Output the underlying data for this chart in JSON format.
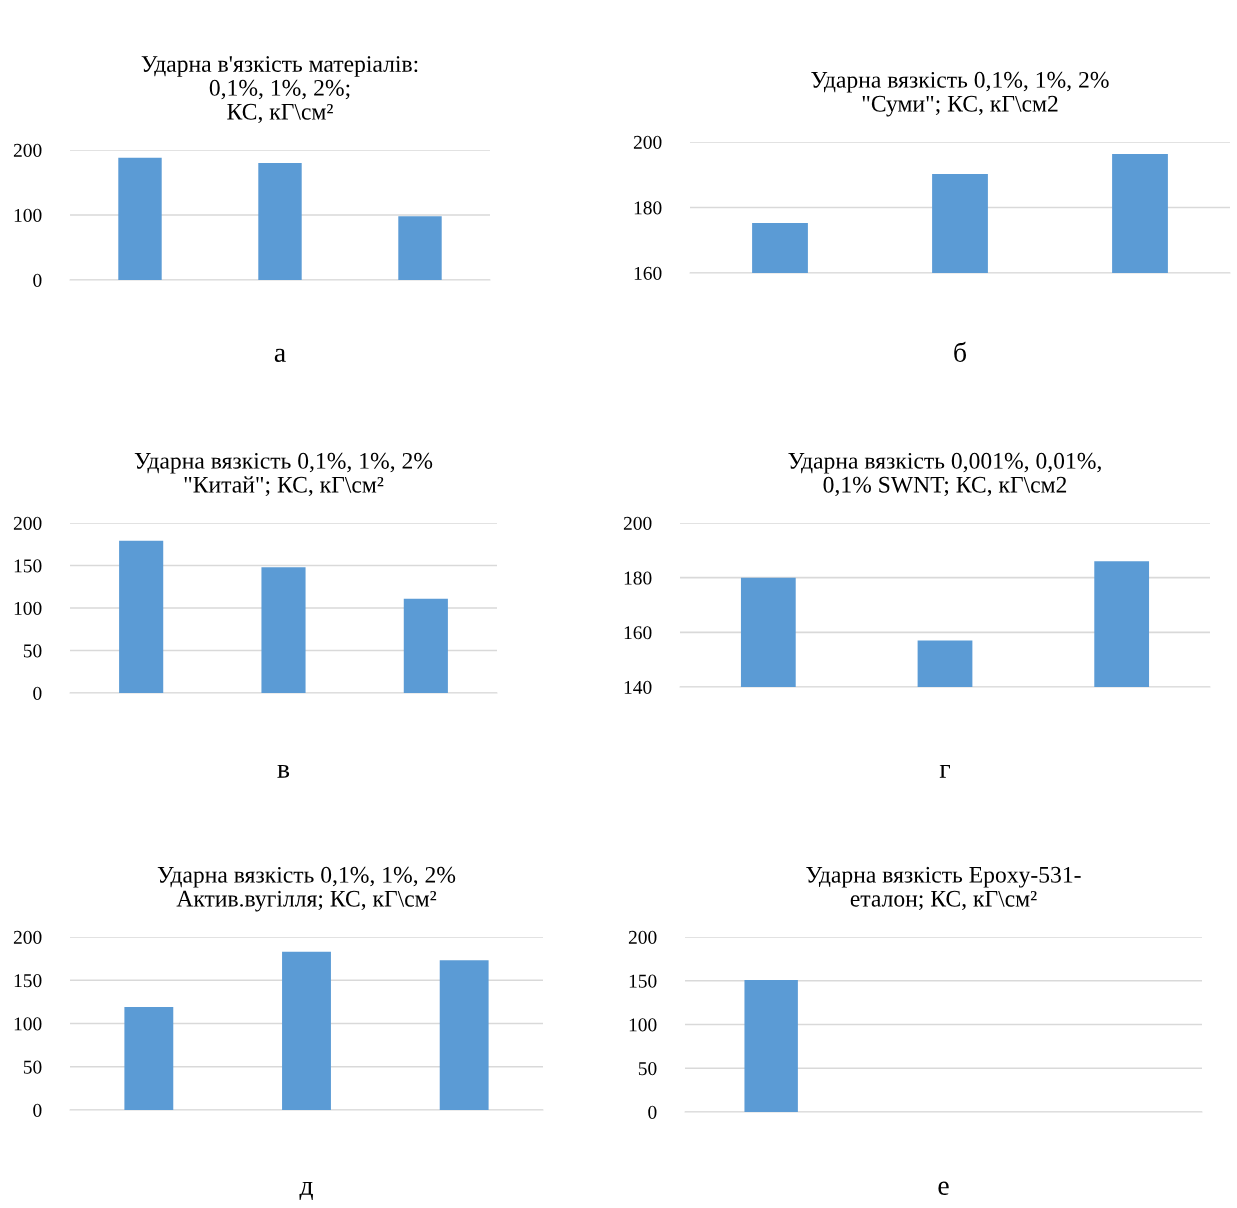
{
  "chart_data": [
    {
      "type": "bar",
      "title": "Ударна в'язкість матеріалів:\n0,1%, 1%, 2%;\nКС, кГ\\см²",
      "categories": [
        null,
        null,
        null
      ],
      "values": [
        188,
        180,
        98
      ],
      "color": "#5b9bd5",
      "ylim": [
        0,
        200
      ],
      "yticks": [
        0,
        100,
        200
      ],
      "grid": "y",
      "tick_labels": "y",
      "annotations": [
        "а"
      ]
    },
    {
      "type": "bar",
      "title": "Ударна вязкість 0,1%, 1%, 2%\n\"Суми\"; КС, кГ\\см2",
      "categories": [
        null,
        null,
        null
      ],
      "values": [
        175.3,
        190.2,
        196.3
      ],
      "color": "#5b9bd5",
      "ylim": [
        160,
        200
      ],
      "yticks": [
        160,
        180,
        200
      ],
      "grid": "y",
      "tick_labels": "y",
      "annotations": [
        "б"
      ]
    },
    {
      "type": "bar",
      "title": "Ударна вязкість 0,1%, 1%, 2%\n\"Китай\"; КС, кГ\\см²",
      "categories": [
        null,
        null,
        null
      ],
      "values": [
        179,
        148,
        111
      ],
      "color": "#5b9bd5",
      "ylim": [
        0,
        200
      ],
      "yticks": [
        0,
        50,
        100,
        150,
        200
      ],
      "grid": "y",
      "tick_labels": "y",
      "annotations": [
        "в"
      ]
    },
    {
      "type": "bar",
      "title": "Ударна вязкість 0,001%, 0,01%,\n0,1% SWNT; КС, кГ\\см2",
      "categories": [
        null,
        null,
        null
      ],
      "values": [
        180,
        157,
        186
      ],
      "color": "#5b9bd5",
      "ylim": [
        140,
        200
      ],
      "yticks": [
        140,
        160,
        180,
        200
      ],
      "grid": "y",
      "tick_labels": "y",
      "annotations": [
        "г"
      ]
    },
    {
      "type": "bar",
      "title": "Ударна вязкість 0,1%, 1%, 2%\nАктив.вугілля; КС, кГ\\см²",
      "categories": [
        null,
        null,
        null
      ],
      "values": [
        119,
        183,
        173
      ],
      "color": "#5b9bd5",
      "ylim": [
        0,
        200
      ],
      "yticks": [
        0,
        50,
        100,
        150,
        200
      ],
      "grid": "y",
      "tick_labels": "y",
      "annotations": [
        "д"
      ]
    },
    {
      "type": "bar",
      "title": "Ударна вязкість Epoxy-531-\nеталон; КС, кГ\\см²",
      "categories": [
        null,
        null,
        null
      ],
      "values": [
        151,
        null,
        null
      ],
      "color": "#5b9bd5",
      "ylim": [
        0,
        200
      ],
      "yticks": [
        0,
        50,
        100,
        150,
        200
      ],
      "grid": "y",
      "tick_labels": "y",
      "annotations": [
        "е"
      ]
    }
  ]
}
